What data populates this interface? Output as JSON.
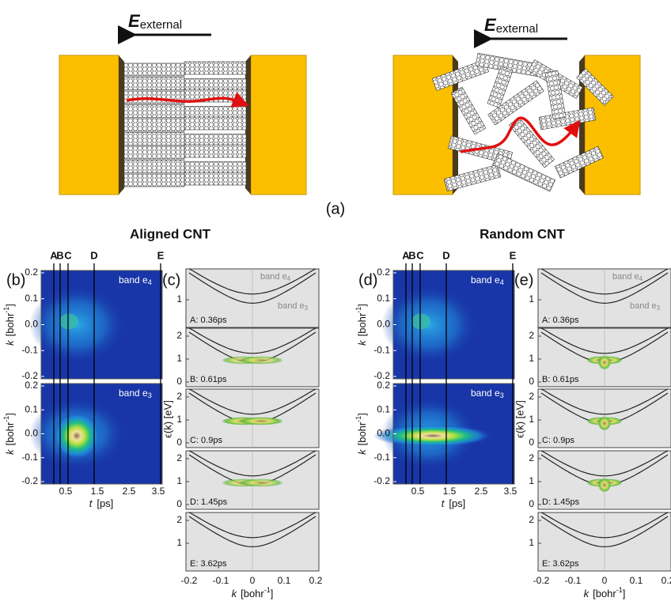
{
  "panel_a": {
    "field_symbol": "E",
    "field_subscript": "external",
    "label": "(a)"
  },
  "columns": [
    {
      "title": "Aligned CNT",
      "map_label": "(b)",
      "band_label": "(c)"
    },
    {
      "title": "Random CNT",
      "map_label": "(d)",
      "band_label": "(e)"
    }
  ],
  "time_markers": [
    "A",
    "B",
    "C",
    "D",
    "E"
  ],
  "bands": [
    {
      "text": "band e",
      "sub": "4"
    },
    {
      "text": "band e",
      "sub": "3"
    }
  ],
  "map_axes": {
    "k_ticks": [
      "0.2",
      "0.1",
      "0.0",
      "-0.1",
      "-0.2"
    ],
    "t_ticks": [
      "0.5",
      "1.5",
      "2.5",
      "3.5"
    ],
    "k_symbol": "k",
    "k_unit": "[bohr",
    "k_unit_sup": "-1",
    "k_unit_end": "]",
    "t_symbol": "t",
    "t_unit": "[ps]"
  },
  "band_axes": {
    "energy_label": "ϵ(k)  [eV]",
    "k_ticks": [
      "-0.2",
      "-0.1",
      "0",
      "0.1",
      "0.2"
    ]
  },
  "band_panels": [
    {
      "label": "A: 0.36ps",
      "ticks": [
        "1"
      ]
    },
    {
      "label": "B: 0.61ps",
      "ticks": [
        "0",
        "1",
        "2"
      ]
    },
    {
      "label": "C: 0.9ps",
      "ticks": [
        "0",
        "1",
        "2"
      ]
    },
    {
      "label": "D: 1.45ps",
      "ticks": [
        "0",
        "1",
        "2"
      ]
    },
    {
      "label": "E: 3.62ps",
      "ticks": [
        "1",
        "2"
      ]
    }
  ]
}
